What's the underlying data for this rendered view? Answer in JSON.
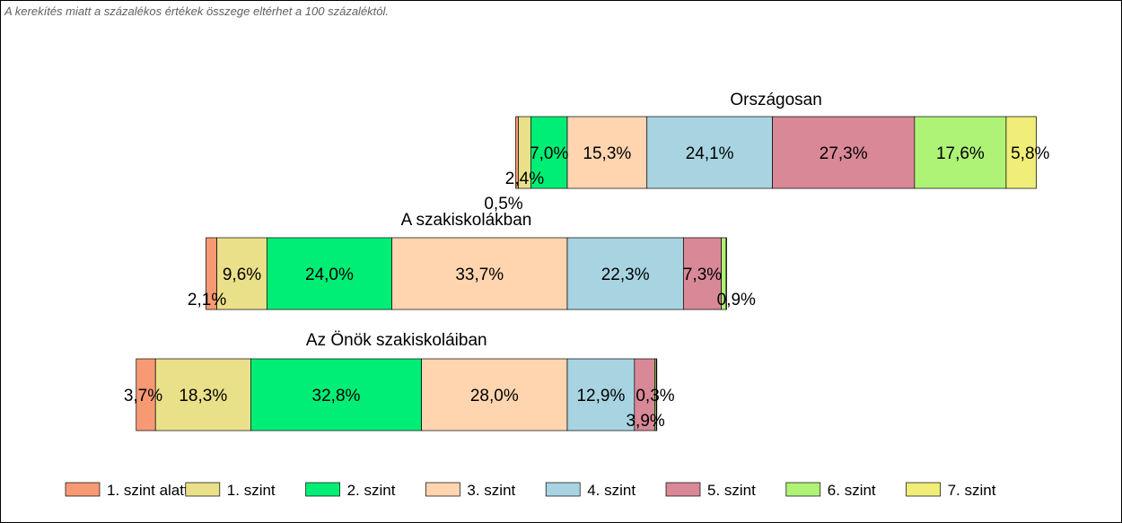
{
  "note": "A kerekítés miatt a  százalékos értékek összege eltérhet a 100 százaléktól.",
  "chart_data": {
    "type": "bar",
    "orientation": "horizontal",
    "stacked": true,
    "legend_position": "bottom",
    "grid": false,
    "rows": [
      {
        "title": "Országosan",
        "values": [
          0.5,
          2.4,
          7.0,
          15.3,
          24.1,
          27.3,
          17.6,
          5.8
        ]
      },
      {
        "title": "A szakiskolákban",
        "values": [
          2.1,
          9.6,
          24.0,
          33.7,
          22.3,
          7.3,
          0.9,
          0.1
        ]
      },
      {
        "title": "Az Önök szakiskoláiban",
        "values": [
          3.7,
          18.3,
          32.8,
          28.0,
          12.9,
          3.9,
          0.3,
          0.1
        ]
      }
    ],
    "value_labels": [
      [
        "0,5%",
        "2,4%",
        "7,0%",
        "15,3%",
        "24,1%",
        "27,3%",
        "17,6%",
        "5,8%"
      ],
      [
        "2,1%",
        "9,6%",
        "24,0%",
        "33,7%",
        "22,3%",
        "7,3%",
        "0,9%",
        ""
      ],
      [
        "3,7%",
        "18,3%",
        "32,8%",
        "28,0%",
        "12,9%",
        "3,9%",
        "0,3%",
        ""
      ]
    ],
    "series": [
      {
        "name": "1. szint alatti",
        "color": "#f79a74"
      },
      {
        "name": "1. szint",
        "color": "#ebe08a"
      },
      {
        "name": "2. szint",
        "color": "#00ee76"
      },
      {
        "name": "3. szint",
        "color": "#ffd5b0"
      },
      {
        "name": "4. szint",
        "color": "#a8d4e2"
      },
      {
        "name": "5. szint",
        "color": "#d98898"
      },
      {
        "name": "6. szint",
        "color": "#aef276"
      },
      {
        "name": "7. szint",
        "color": "#f0ee78"
      }
    ]
  }
}
